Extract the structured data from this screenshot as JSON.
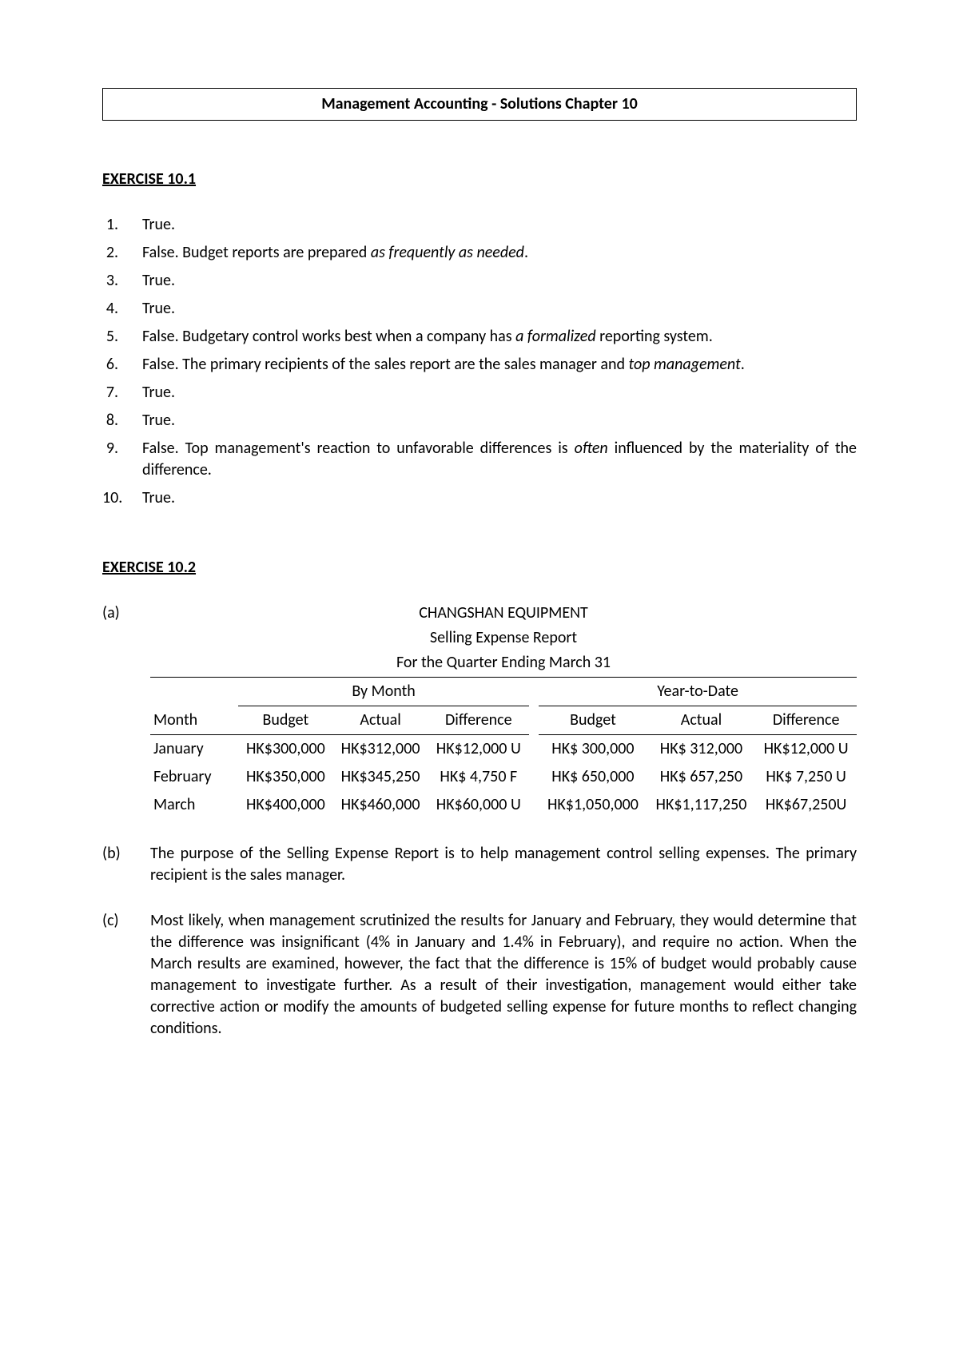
{
  "title": "Management Accounting - Solutions Chapter 10",
  "ex1": {
    "heading": "EXERCISE 10.1",
    "items": [
      {
        "n": "1.",
        "pre": "True."
      },
      {
        "n": "2.",
        "pre": "False. Budget reports are prepared ",
        "em": "as frequently as needed",
        "post": "."
      },
      {
        "n": "3.",
        "pre": "True."
      },
      {
        "n": "4.",
        "pre": "True."
      },
      {
        "n": "5.",
        "pre": "False. Budgetary control works best when a company has ",
        "em": "a formalized",
        "post": " reporting system."
      },
      {
        "n": "6.",
        "pre": "False. The primary recipients of the sales report are the sales manager and ",
        "em": "top management",
        "post": "."
      },
      {
        "n": "7.",
        "pre": "True."
      },
      {
        "n": "8.",
        "pre": "True."
      },
      {
        "n": "9.",
        "pre": "False. Top management's reaction to unfavorable differences is ",
        "em": "often",
        "post": " influenced by the materiality of the difference."
      },
      {
        "n": "10.",
        "pre": "True."
      }
    ]
  },
  "ex2": {
    "heading": "EXERCISE 10.2",
    "part_a_label": "(a)",
    "report_title1": "CHANGSHAN EQUIPMENT",
    "report_title2": "Selling Expense Report",
    "report_title3": "For the Quarter Ending March 31",
    "span1": "By Month",
    "span2": "Year-to-Date",
    "cols": {
      "month": "Month",
      "budget": "Budget",
      "actual": "Actual",
      "diff": "Difference"
    },
    "rows": [
      {
        "month": "January",
        "m_budget": "HK$300,000",
        "m_actual": "HK$312,000",
        "m_diff": "HK$12,000 U",
        "y_budget": "HK$ 300,000",
        "y_actual": "HK$ 312,000",
        "y_diff": "HK$12,000 U"
      },
      {
        "month": "February",
        "m_budget": "HK$350,000",
        "m_actual": "HK$345,250",
        "m_diff": "HK$  4,750 F",
        "y_budget": "HK$ 650,000",
        "y_actual": "HK$ 657,250",
        "y_diff": "HK$  7,250 U"
      },
      {
        "month": "March",
        "m_budget": "HK$400,000",
        "m_actual": "HK$460,000",
        "m_diff": "HK$60,000 U",
        "y_budget": "HK$1,050,000",
        "y_actual": "HK$1,117,250",
        "y_diff": "HK$67,250U"
      }
    ],
    "part_b_label": "(b)",
    "part_b_text": "The purpose of the Selling Expense Report is to help management control selling expenses. The primary recipient is the sales manager.",
    "part_c_label": "(c)",
    "part_c_text": "Most likely, when management scrutinized the results for January and February, they would determine that the difference was insignificant (4% in January and 1.4% in February), and require no action. When the March results are examined, however, the fact that the difference is 15% of budget would probably cause management to investigate further. As a result of their investigation, management would either take corrective action or modify the amounts of budgeted selling expense for future months to reflect changing conditions."
  }
}
